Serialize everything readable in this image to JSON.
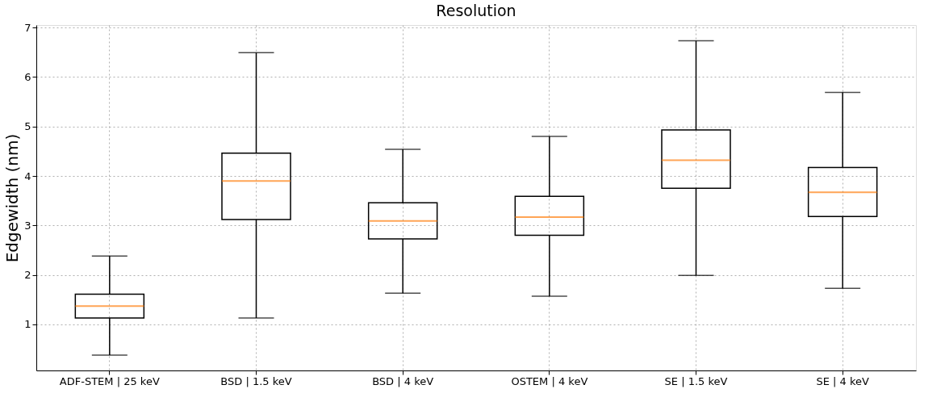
{
  "chart_data": {
    "type": "box",
    "title": "Resolution",
    "ylabel": "Edgewidth (nm)",
    "categories": [
      "ADF-STEM | 25 keV",
      "BSD | 1.5 keV",
      "BSD | 4 keV",
      "OSTEM | 4 keV",
      "SE | 1.5 keV",
      "SE | 4 keV"
    ],
    "boxes": [
      {
        "low": 0.38,
        "q1": 1.13,
        "median": 1.37,
        "q3": 1.61,
        "high": 2.38
      },
      {
        "low": 1.13,
        "q1": 3.12,
        "median": 3.9,
        "q3": 4.46,
        "high": 6.49
      },
      {
        "low": 1.63,
        "q1": 2.73,
        "median": 3.09,
        "q3": 3.46,
        "high": 4.54
      },
      {
        "low": 1.57,
        "q1": 2.8,
        "median": 3.17,
        "q3": 3.59,
        "high": 4.8
      },
      {
        "low": 1.99,
        "q1": 3.75,
        "median": 4.32,
        "q3": 4.93,
        "high": 6.73
      },
      {
        "low": 1.73,
        "q1": 3.18,
        "median": 3.67,
        "q3": 4.17,
        "high": 5.69
      }
    ],
    "ylim": [
      0.07,
      7.05
    ],
    "yticks": [
      1,
      2,
      3,
      4,
      5,
      6,
      7
    ],
    "grid": true
  }
}
